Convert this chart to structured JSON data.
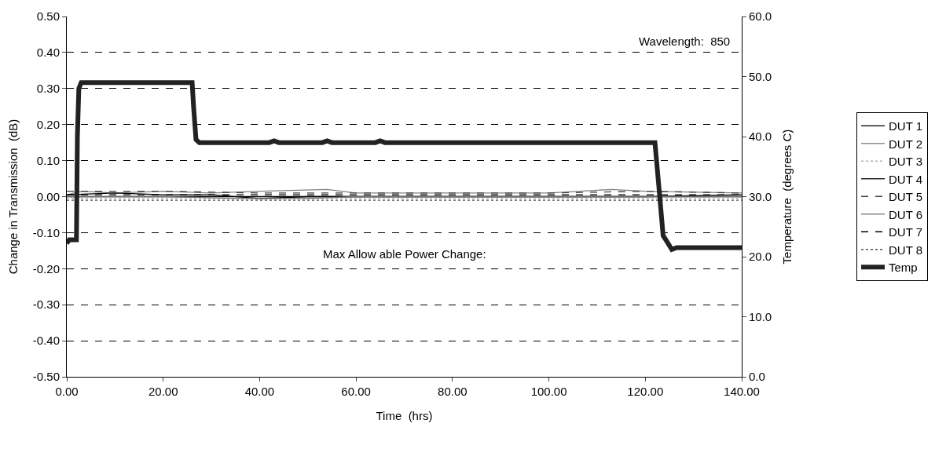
{
  "chart_data": {
    "type": "line",
    "xlabel": "Time  (hrs)",
    "ylabel": "Change in Transmission  (dB)",
    "y2label": "Temperature  (degrees C)",
    "annotations": [
      "Wavelength:  850",
      "Max Allow able Power Change:"
    ],
    "xlim": [
      0,
      140
    ],
    "xticks": [
      {
        "value": 0,
        "label": "0.00"
      },
      {
        "value": 20,
        "label": "20.00"
      },
      {
        "value": 40,
        "label": "40.00"
      },
      {
        "value": 60,
        "label": "60.00"
      },
      {
        "value": 80,
        "label": "80.00"
      },
      {
        "value": 100,
        "label": "100.00"
      },
      {
        "value": 120,
        "label": "120.00"
      },
      {
        "value": 140,
        "label": "140.00"
      }
    ],
    "ylim": [
      -0.5,
      0.5
    ],
    "yticks": [
      {
        "value": -0.5,
        "label": "-0.50"
      },
      {
        "value": -0.4,
        "label": "-0.40"
      },
      {
        "value": -0.3,
        "label": "-0.30"
      },
      {
        "value": -0.2,
        "label": "-0.20"
      },
      {
        "value": -0.1,
        "label": "-0.10"
      },
      {
        "value": 0,
        "label": "0.00"
      },
      {
        "value": 0.1,
        "label": "0.10"
      },
      {
        "value": 0.2,
        "label": "0.20"
      },
      {
        "value": 0.3,
        "label": "0.30"
      },
      {
        "value": 0.4,
        "label": "0.40"
      },
      {
        "value": 0.5,
        "label": "0.50"
      }
    ],
    "y2lim": [
      0,
      60
    ],
    "y2ticks": [
      {
        "value": 0,
        "label": "0.0"
      },
      {
        "value": 10,
        "label": "10.0"
      },
      {
        "value": 20,
        "label": "20.0"
      },
      {
        "value": 30,
        "label": "30.0"
      },
      {
        "value": 40,
        "label": "40.0"
      },
      {
        "value": 50,
        "label": "50.0"
      },
      {
        "value": 60,
        "label": "60.0"
      }
    ],
    "grid": "y",
    "legend": "right",
    "marker": "none",
    "series": [
      {
        "name": "DUT 1",
        "color": "#000000",
        "line_style": "solid",
        "x": [
          0,
          20,
          40,
          60,
          80,
          100,
          120,
          140
        ],
        "values": [
          0,
          0,
          0,
          0,
          0,
          0,
          0,
          0.005
        ]
      },
      {
        "name": "DUT 2",
        "color": "#808080",
        "line_style": "solid",
        "x": [
          0,
          3,
          10,
          20,
          30,
          40,
          54,
          60,
          80,
          100,
          113,
          120,
          140
        ],
        "values": [
          0.005,
          0.015,
          0.01,
          0.015,
          0.01,
          0.015,
          0.02,
          0.01,
          0.01,
          0.01,
          0.02,
          0.015,
          0.01
        ]
      },
      {
        "name": "DUT 3",
        "color": "#b0b0b0",
        "line_style": "dotted",
        "x": [
          0,
          20,
          40,
          60,
          80,
          100,
          120,
          140
        ],
        "values": [
          -0.005,
          -0.005,
          -0.005,
          -0.005,
          -0.005,
          -0.005,
          -0.005,
          -0.005
        ]
      },
      {
        "name": "DUT 4",
        "color": "#000000",
        "line_style": "solid",
        "x": [
          0,
          10,
          20,
          30,
          40,
          50,
          60,
          80,
          100,
          120,
          140
        ],
        "values": [
          0.005,
          0.01,
          0.005,
          0.005,
          -0.005,
          0,
          0,
          0,
          0,
          0,
          0
        ]
      },
      {
        "name": "DUT 5",
        "color": "#404040",
        "line_style": "dashed",
        "x": [
          0,
          20,
          40,
          60,
          80,
          100,
          120,
          140
        ],
        "values": [
          0.015,
          0.015,
          0.01,
          0.01,
          0.01,
          0.01,
          0.015,
          0.01
        ]
      },
      {
        "name": "DUT 6",
        "color": "#707070",
        "line_style": "solid",
        "x": [
          0,
          20,
          35,
          50,
          60,
          80,
          100,
          120,
          140
        ],
        "values": [
          0,
          0,
          -0.005,
          -0.005,
          0,
          0,
          0,
          0,
          0
        ]
      },
      {
        "name": "DUT 7",
        "color": "#000000",
        "line_style": "dashed",
        "x": [
          0,
          20,
          40,
          60,
          80,
          100,
          120,
          140
        ],
        "values": [
          0.005,
          0.005,
          0.005,
          0.005,
          0.005,
          0.005,
          0.005,
          0.005
        ]
      },
      {
        "name": "DUT 8",
        "color": "#505050",
        "line_style": "dotted",
        "x": [
          0,
          20,
          40,
          60,
          80,
          100,
          120,
          140
        ],
        "values": [
          -0.01,
          -0.01,
          -0.01,
          -0.01,
          -0.01,
          -0.01,
          -0.01,
          -0.01
        ]
      },
      {
        "name": "Temp",
        "color": "#222222",
        "line_style": "solid",
        "axis": "y2",
        "x": [
          0,
          0.5,
          2,
          2.2,
          2.5,
          3,
          26,
          26.3,
          26.8,
          27.5,
          42,
          43,
          44,
          53,
          54,
          55,
          64,
          65,
          66,
          122,
          123,
          123.7,
          124.5,
          125.5,
          126.5,
          140
        ],
        "values": [
          22.2,
          22.8,
          22.8,
          40,
          48,
          49,
          49,
          45,
          39.5,
          39,
          39,
          39.3,
          39,
          39,
          39.3,
          39,
          39,
          39.3,
          39,
          39,
          30,
          23.5,
          22.5,
          21.2,
          21.5,
          21.5
        ]
      }
    ]
  }
}
